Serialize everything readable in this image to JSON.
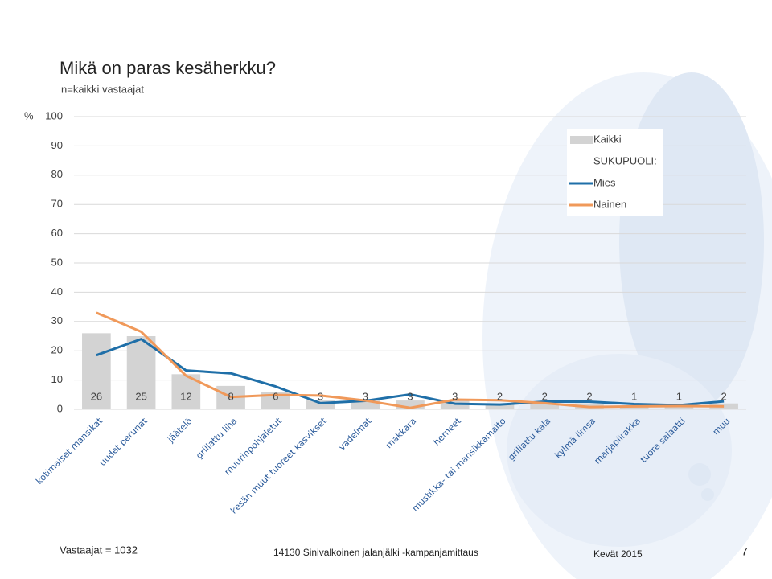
{
  "chart_data": {
    "type": "bar-line",
    "title": "Mikä on paras kesäherkku?",
    "subtitle": "n=kaikki vastaajat",
    "y_unit": "%",
    "categories": [
      "kotimaiset mansikat",
      "uudet perunat",
      "jäätelö",
      "grillattu liha",
      "muurinpohjaletut",
      "kesän muut tuoreet kasvikset",
      "vadelmat",
      "makkara",
      "herneet",
      "mustikka- tai mansikkamaito",
      "grillattu kala",
      "kylmä limsa",
      "marjapiirakka",
      "tuore salaatti",
      "muu"
    ],
    "legend_title": "SUKUPUOLI:",
    "series": [
      {
        "name": "Kaikki",
        "type": "bar",
        "color": "#d3d3d3",
        "values": [
          26,
          25,
          12,
          8,
          6,
          3,
          3,
          3,
          3,
          2,
          2,
          2,
          1,
          1,
          2
        ]
      },
      {
        "name": "Mies",
        "type": "line",
        "color": "#1f6fa8",
        "values": [
          18.5,
          24,
          13.3,
          12.3,
          7.8,
          2.1,
          2.9,
          5.1,
          1.9,
          1.6,
          2.6,
          2.6,
          1.8,
          1.4,
          2.7
        ]
      },
      {
        "name": "Nainen",
        "type": "line",
        "color": "#f0995a",
        "values": [
          33,
          26.5,
          11.5,
          4.2,
          4.9,
          4.7,
          3.0,
          0.5,
          3.3,
          3.1,
          2.1,
          0.8,
          1.0,
          1.1,
          1.0
        ]
      }
    ],
    "ylim": [
      0,
      100
    ],
    "yticks": [
      0,
      10,
      20,
      30,
      40,
      50,
      60,
      70,
      80,
      90,
      100
    ],
    "grid": true,
    "legend": "upper right"
  },
  "footer": {
    "respondents": "Vastaajat = 1032",
    "project": "14130 Sinivalkoinen jalanjälki -kampanjamittaus",
    "period": "Kevät 2015",
    "page": "7"
  }
}
